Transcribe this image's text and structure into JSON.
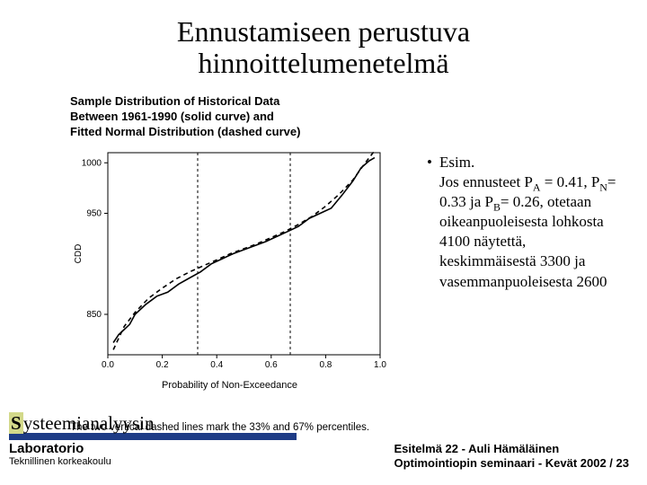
{
  "title_line1": "Ennustamiseen perustuva",
  "title_line2": "hinnoittelumenetelmä",
  "chart": {
    "header_l1": "Sample Distribution of Historical Data",
    "header_l2": "Between 1961-1990 (solid curve) and",
    "header_l3": "Fitted Normal Distribution (dashed curve)",
    "xlabel": "Probability of Non-Exceedance",
    "ylabel": "CDD",
    "caption": "The two vertical dashed lines mark the 33% and 67% percentiles.",
    "xlim": [
      0.0,
      1.0
    ],
    "ylim": [
      810,
      1010
    ],
    "xticks": [
      0.0,
      0.2,
      0.4,
      0.6,
      0.8,
      1.0
    ],
    "xticklabels": [
      "0.0",
      "0.2",
      "0.4",
      "0.6",
      "0.8",
      "1.0"
    ],
    "yticks": [
      850,
      950,
      1000
    ],
    "yticklabels": [
      "850",
      "950",
      "1000"
    ],
    "vlines": [
      0.33,
      0.67
    ],
    "solid_series": [
      [
        0.02,
        822
      ],
      [
        0.04,
        830
      ],
      [
        0.06,
        835
      ],
      [
        0.08,
        840
      ],
      [
        0.1,
        850
      ],
      [
        0.14,
        860
      ],
      [
        0.18,
        868
      ],
      [
        0.22,
        872
      ],
      [
        0.26,
        880
      ],
      [
        0.3,
        886
      ],
      [
        0.34,
        892
      ],
      [
        0.38,
        900
      ],
      [
        0.42,
        905
      ],
      [
        0.46,
        910
      ],
      [
        0.5,
        914
      ],
      [
        0.54,
        918
      ],
      [
        0.58,
        922
      ],
      [
        0.62,
        927
      ],
      [
        0.66,
        932
      ],
      [
        0.7,
        937
      ],
      [
        0.74,
        945
      ],
      [
        0.78,
        950
      ],
      [
        0.82,
        955
      ],
      [
        0.86,
        968
      ],
      [
        0.9,
        982
      ],
      [
        0.93,
        995
      ],
      [
        0.96,
        1002
      ],
      [
        0.98,
        1005
      ]
    ],
    "dashed_series": [
      [
        0.02,
        815
      ],
      [
        0.06,
        838
      ],
      [
        0.1,
        852
      ],
      [
        0.15,
        866
      ],
      [
        0.2,
        876
      ],
      [
        0.25,
        885
      ],
      [
        0.3,
        892
      ],
      [
        0.35,
        898
      ],
      [
        0.4,
        904
      ],
      [
        0.45,
        910
      ],
      [
        0.5,
        915
      ],
      [
        0.55,
        920
      ],
      [
        0.6,
        926
      ],
      [
        0.65,
        932
      ],
      [
        0.7,
        939
      ],
      [
        0.75,
        947
      ],
      [
        0.8,
        957
      ],
      [
        0.85,
        969
      ],
      [
        0.9,
        983
      ],
      [
        0.94,
        998
      ],
      [
        0.98,
        1012
      ]
    ],
    "border_color": "#000000",
    "bg_color": "#ffffff",
    "solid_color": "#000000",
    "dashed_color": "#000000",
    "line_width": 1.6,
    "dash_pattern": "5,4"
  },
  "bullet": {
    "line1": "Esim.",
    "line2_pre": "Jos ennusteet P",
    "subA": "A",
    "line2_post": " = 0.41, P",
    "subN": "N",
    "line3": "= 0.33 ja P",
    "subB": "B",
    "line3_post": "= 0.26, otetaan oikeanpuoleisesta lohkosta 4100 näytettä, keskimmäisestä  3300 ja vasemmanpuoleisesta 2600"
  },
  "footer": {
    "brand_S": "S",
    "brand_rest": "ysteemianalyysin",
    "sub1": "Laboratorio",
    "sub2": "Teknillinen korkeakoulu",
    "right_l1": "Esitelmä 22 - Auli Hämäläinen",
    "right_l2": "Optimointiopin seminaari - Kevät 2002 / 23",
    "bar_color": "#1e3c86",
    "highlight_color": "#d3d98a"
  }
}
